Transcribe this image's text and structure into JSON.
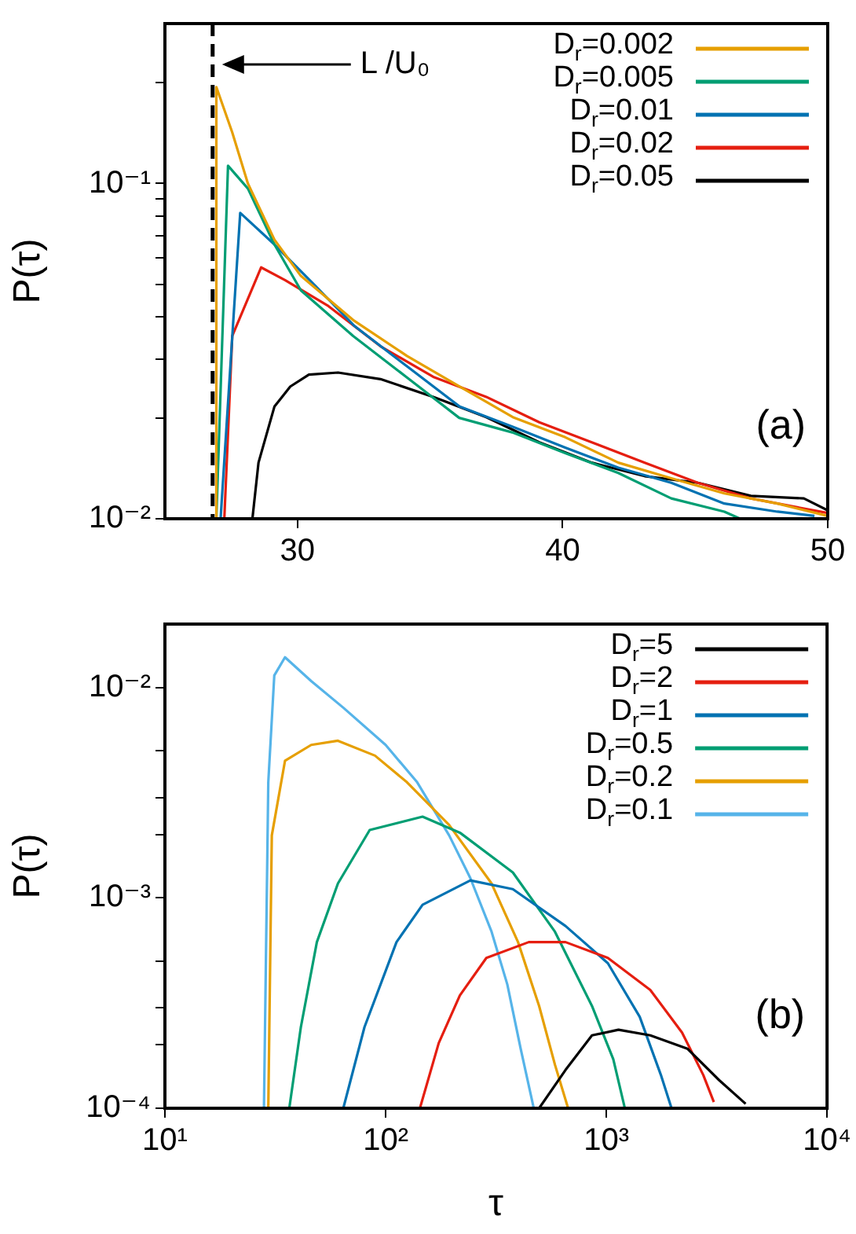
{
  "chart_data": [
    {
      "type": "line",
      "ylabel": "P(τ)",
      "log": "y",
      "xlim": [
        25,
        50
      ],
      "ylim": [
        0.01,
        0.3
      ],
      "xticks": [
        30,
        40,
        50
      ],
      "yticks": [
        {
          "value": 0.01,
          "label": "10⁻²"
        },
        {
          "value": 0.02,
          "label": null
        },
        {
          "value": 0.03,
          "label": null
        },
        {
          "value": 0.04,
          "label": null
        },
        {
          "value": 0.05,
          "label": null
        },
        {
          "value": 0.06,
          "label": null
        },
        {
          "value": 0.07,
          "label": null
        },
        {
          "value": 0.08,
          "label": null
        },
        {
          "value": 0.09,
          "label": null
        },
        {
          "value": 0.1,
          "label": "10⁻¹"
        },
        {
          "value": 0.2,
          "label": null
        }
      ],
      "legend": "top right",
      "annotations": [
        "(a)"
      ],
      "ref_lines": [
        {
          "axis": "x",
          "value": 26.8,
          "label": "L /U₀",
          "color": "#000000",
          "line_style": "dashed"
        }
      ],
      "series": [
        {
          "name": "D$_{r}$=0.002",
          "color": "#e69f00",
          "x": [
            26.9,
            26.94,
            27.54,
            28.13,
            29.13,
            30.13,
            32.13,
            34.13,
            36.12,
            38.12,
            40.1,
            42.1,
            44.1,
            46.1,
            48.1,
            50
          ],
          "values": [
            0.01,
            0.194,
            0.142,
            0.1,
            0.068,
            0.053,
            0.039,
            0.0306,
            0.0248,
            0.0201,
            0.0175,
            0.0147,
            0.0132,
            0.0119,
            0.0111,
            0.0102
          ]
        },
        {
          "name": "D$_{r}$=0.005",
          "color": "#009e73",
          "x": [
            26.94,
            27.38,
            28.13,
            29.13,
            30.13,
            32.1,
            34.1,
            36.1,
            38.1,
            40.1,
            42.1,
            44.1,
            46.1,
            46.7
          ],
          "values": [
            0.01,
            0.113,
            0.0966,
            0.0658,
            0.048,
            0.0351,
            0.0265,
            0.02,
            0.0181,
            0.0157,
            0.0137,
            0.0115,
            0.0105,
            0.01
          ]
        },
        {
          "name": "D$_{r}$=0.01",
          "color": "#0072b2",
          "x": [
            27.1,
            27.84,
            29.13,
            30.73,
            32.13,
            34.13,
            36.12,
            38.12,
            40.1,
            42.1,
            44.1,
            46.1,
            48.1,
            49.5
          ],
          "values": [
            0.01,
            0.0817,
            0.0658,
            0.049,
            0.0377,
            0.0285,
            0.0216,
            0.0188,
            0.0163,
            0.0142,
            0.0128,
            0.0111,
            0.0105,
            0.0102
          ]
        },
        {
          "name": "D$_{r}$=0.02",
          "color": "#e51e10",
          "x": [
            27.24,
            27.54,
            28.63,
            29.53,
            31.13,
            33.13,
            35.12,
            37.12,
            39.12,
            41.1,
            43.1,
            45.1,
            47.1,
            50
          ],
          "values": [
            0.01,
            0.0351,
            0.0562,
            0.0515,
            0.0433,
            0.0327,
            0.0265,
            0.0231,
            0.0194,
            0.0169,
            0.0147,
            0.0128,
            0.0115,
            0.0104
          ]
        },
        {
          "name": "D$_{r}$=0.05",
          "color": "#000000",
          "x": [
            28.3,
            28.53,
            29.13,
            29.73,
            30.43,
            31.53,
            33.13,
            35.12,
            37.12,
            39.12,
            41.1,
            43.1,
            45.1,
            47.1,
            49.1,
            50
          ],
          "values": [
            0.01,
            0.0147,
            0.0216,
            0.0248,
            0.0269,
            0.0273,
            0.0261,
            0.0231,
            0.0201,
            0.0169,
            0.0147,
            0.0134,
            0.0128,
            0.0117,
            0.0115,
            0.0106
          ]
        }
      ]
    },
    {
      "type": "line",
      "xlabel": "τ",
      "ylabel": "P(τ)",
      "log": "xy",
      "xlim": [
        10,
        10000
      ],
      "ylim": [
        0.0001,
        0.02
      ],
      "xticks": [
        {
          "value": 10,
          "label": "10¹"
        },
        {
          "value": 100,
          "label": "10²"
        },
        {
          "value": 1000,
          "label": "10³"
        },
        {
          "value": 10000,
          "label": "10⁴"
        }
      ],
      "yticks": [
        {
          "value": 0.0001,
          "label": "10⁻⁴"
        },
        {
          "value": 0.0002,
          "label": null
        },
        {
          "value": 0.0003,
          "label": null
        },
        {
          "value": 0.0005,
          "label": null
        },
        {
          "value": 0.001,
          "label": "10⁻³"
        },
        {
          "value": 0.002,
          "label": null
        },
        {
          "value": 0.003,
          "label": null
        },
        {
          "value": 0.005,
          "label": null
        },
        {
          "value": 0.01,
          "label": "10⁻²"
        }
      ],
      "legend": "top right",
      "annotations": [
        "(b)"
      ],
      "series": [
        {
          "name": "D$_{r}$=5",
          "color": "#000000",
          "x": [
            496,
            653,
            861,
            1135,
            1581,
            2328,
            3243,
            4276
          ],
          "values": [
            0.0001,
            0.000152,
            0.000222,
            0.000236,
            0.000222,
            0.000192,
            0.000136,
            0.000105
          ]
        },
        {
          "name": "D$_{r}$=2",
          "color": "#e51e10",
          "x": [
            143,
            174,
            217,
            286,
            445,
            653,
            1016,
            1581,
            2203,
            2748,
            3069
          ],
          "values": [
            0.0001,
            0.000204,
            0.000344,
            0.000518,
            0.000616,
            0.000616,
            0.000518,
            0.000365,
            0.000229,
            0.000144,
            0.000107
          ]
        },
        {
          "name": "D$_{r}$=1",
          "color": "#0072b2",
          "x": [
            64.3,
            80.2,
            112,
            147,
            242,
            377,
            653,
            1016,
            1416,
            1766,
            1974
          ],
          "values": [
            0.0001,
            0.000243,
            0.000616,
            0.000927,
            0.00121,
            0.0011,
            0.000735,
            0.000489,
            0.000272,
            0.000144,
            0.0001
          ]
        },
        {
          "name": "D$_{r}$=0.5",
          "color": "#009e73",
          "x": [
            36.6,
            41.3,
            48.8,
            60.8,
            84.7,
            147,
            217,
            377,
            585,
            861,
            1075,
            1213
          ],
          "values": [
            0.0001,
            0.000243,
            0.000616,
            0.00117,
            0.0021,
            0.00243,
            0.00204,
            0.00132,
            0.00069,
            0.000306,
            0.000171,
            0.0001
          ]
        },
        {
          "name": "D$_{r}$=0.2",
          "color": "#e69f00",
          "x": [
            29.4,
            30.5,
            35,
            46,
            60.8,
            89.5,
            125,
            194,
            302,
            398,
            496,
            585,
            671
          ],
          "values": [
            0.0001,
            0.00198,
            0.00448,
            0.00533,
            0.00558,
            0.00474,
            0.00354,
            0.00222,
            0.00117,
            0.000616,
            0.000306,
            0.000161,
            0.0001
          ]
        },
        {
          "name": "D$_{r}$=0.1",
          "color": "#56b4e9",
          "x": [
            28.1,
            29.4,
            31.3,
            35,
            46.1,
            64.3,
            100,
            139,
            194,
            242,
            302,
            356,
            409,
            469
          ],
          "values": [
            0.0001,
            0.00354,
            0.0114,
            0.0139,
            0.0107,
            0.00801,
            0.00533,
            0.00354,
            0.00198,
            0.00124,
            0.00069,
            0.000387,
            0.000192,
            0.0001
          ]
        }
      ]
    }
  ]
}
